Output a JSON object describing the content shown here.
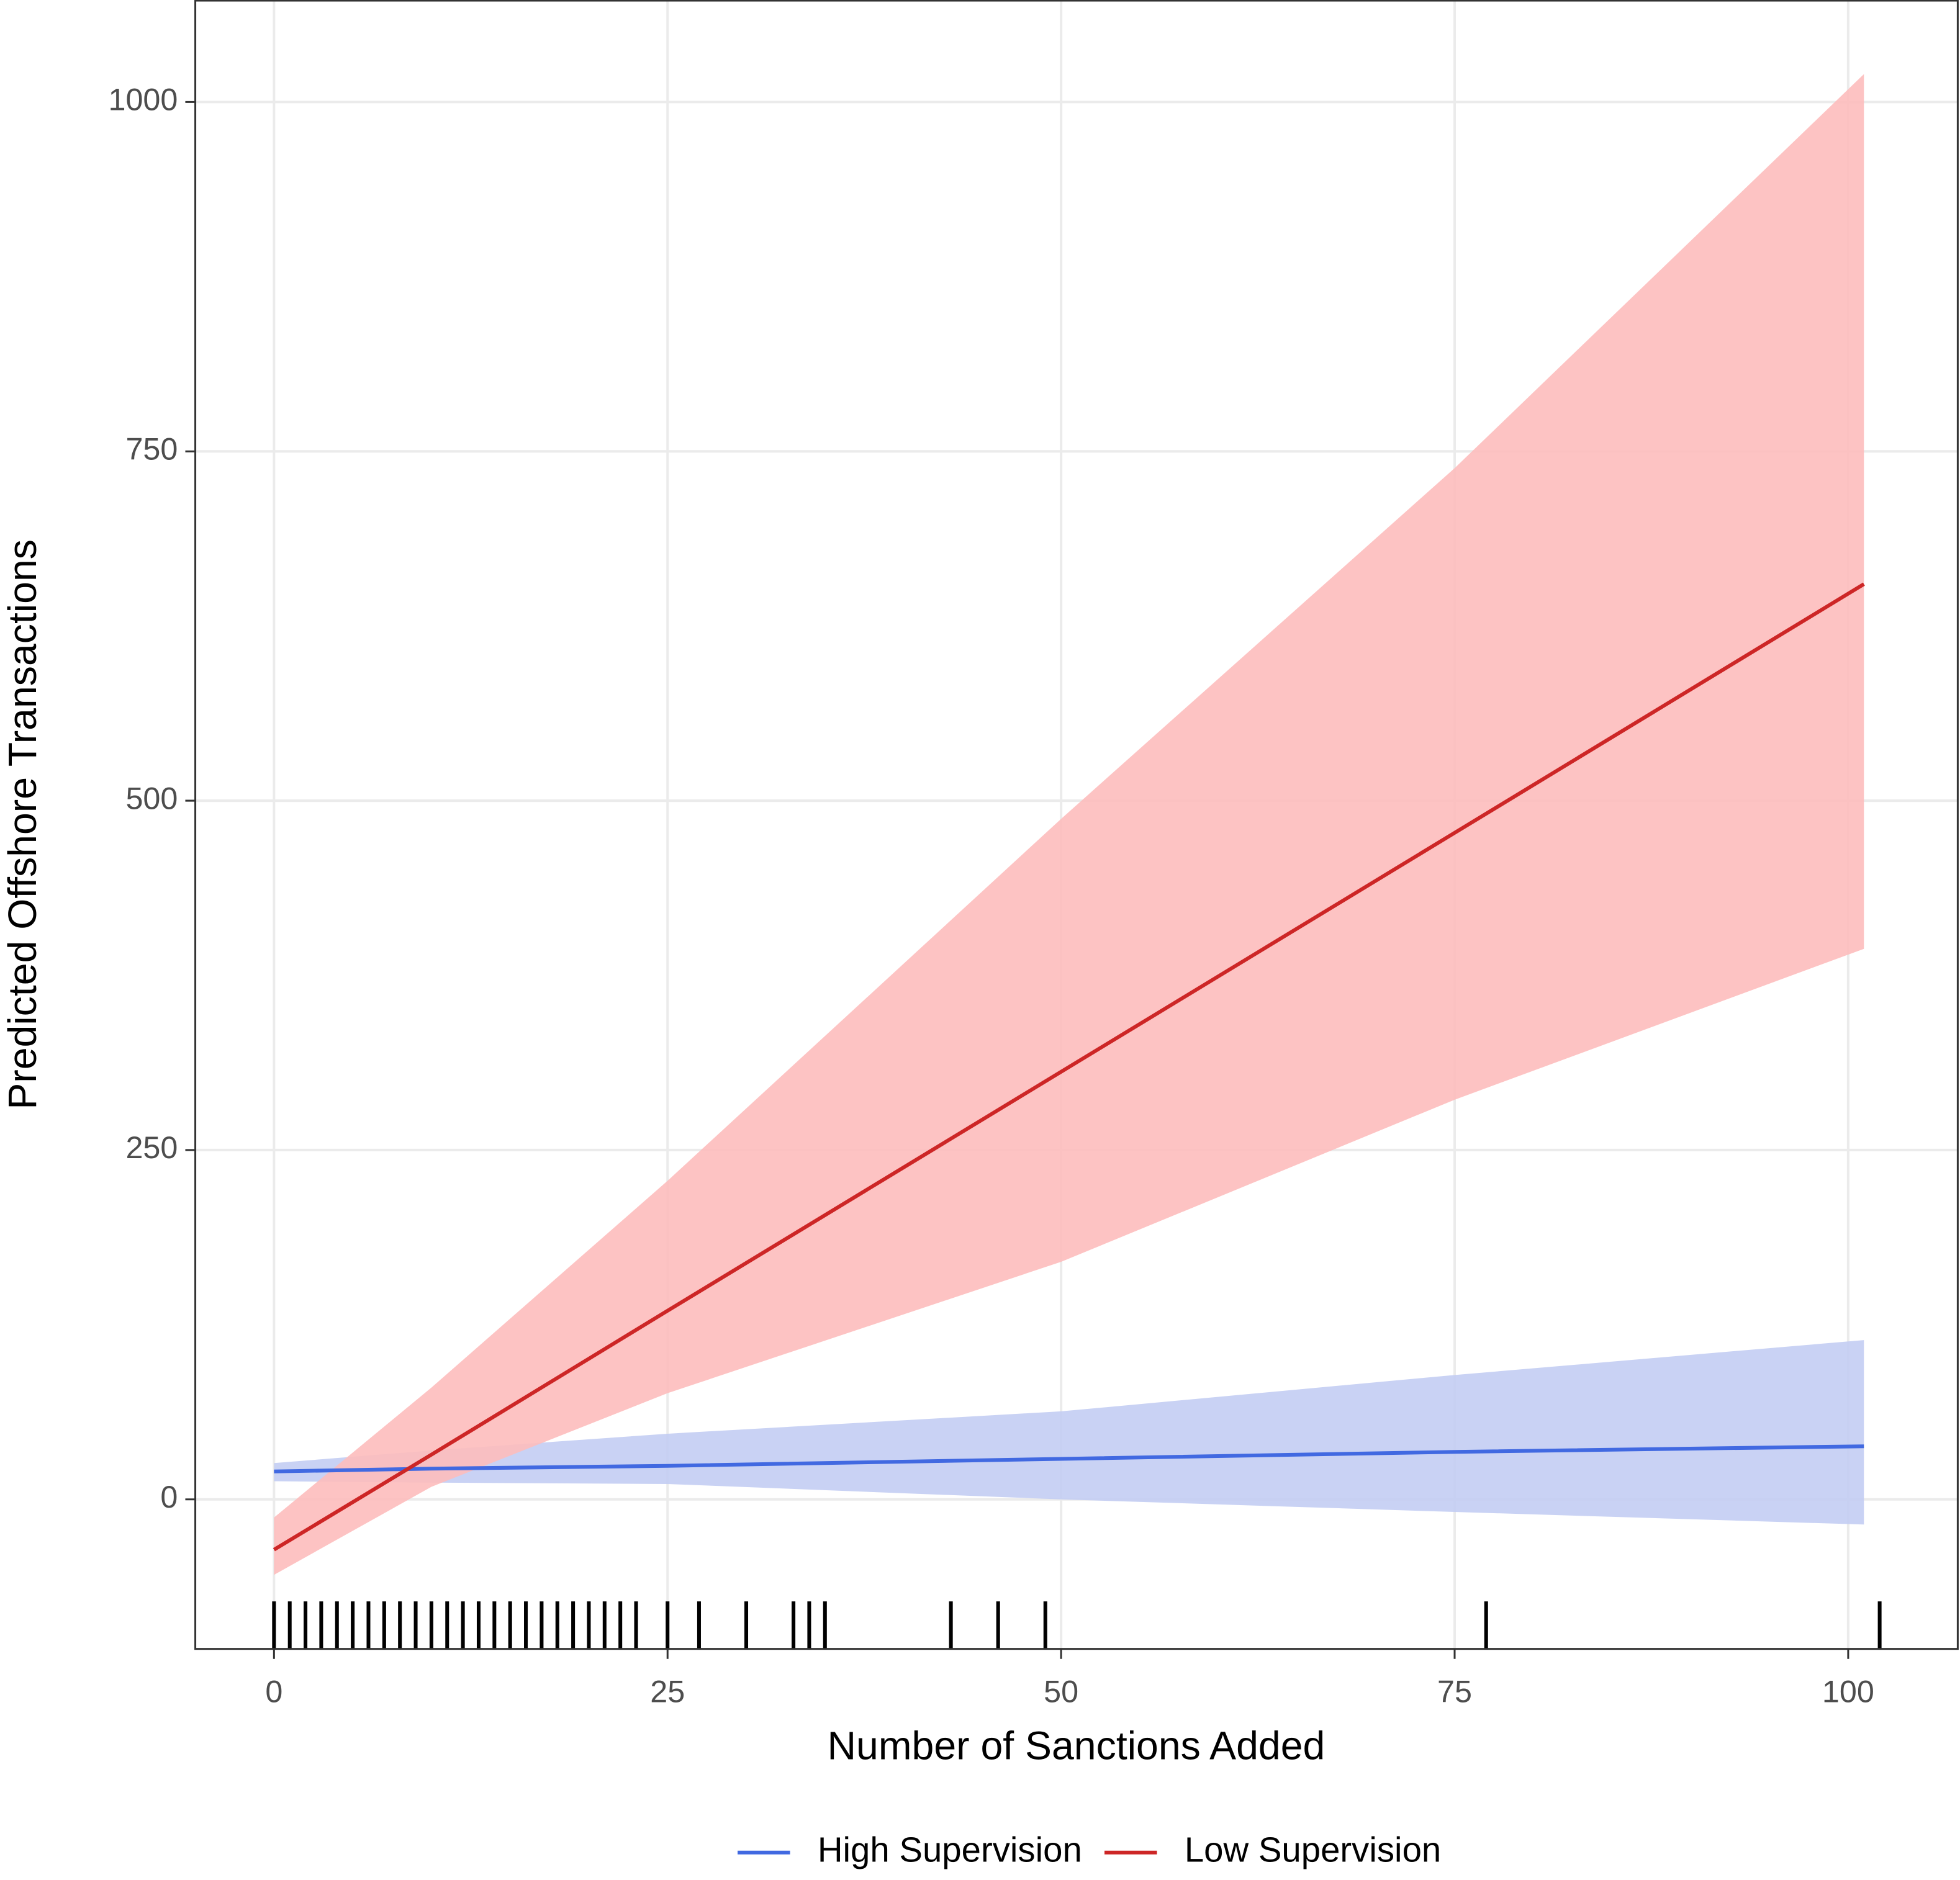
{
  "chart_data": {
    "type": "line",
    "x_label": "Number of Sanctions Added",
    "y_label": "Predicted Offshore Transactions",
    "x": [
      0,
      10,
      25,
      50,
      75,
      101
    ],
    "series": [
      {
        "name": "High Supervision",
        "color": "#4169e1",
        "band_color": "#c3cdf3",
        "values": [
          20,
          22,
          24,
          29,
          34,
          38
        ],
        "upper": [
          26,
          35,
          47,
          63,
          89,
          114
        ],
        "lower": [
          13,
          12,
          11,
          0,
          -9,
          -18
        ]
      },
      {
        "name": "Low Supervision",
        "color": "#cd2626",
        "band_color": "#fdbdbd",
        "values": [
          -36,
          32,
          135,
          306,
          477,
          655
        ],
        "upper": [
          -13,
          80,
          228,
          487,
          738,
          1020
        ],
        "lower": [
          -54,
          9,
          76,
          170,
          286,
          394
        ]
      }
    ],
    "rug": [
      0,
      1,
      2,
      3,
      4,
      5,
      6,
      7,
      8,
      9,
      10,
      11,
      12,
      13,
      14,
      15,
      16,
      17,
      18,
      19,
      20,
      21,
      22,
      23,
      25,
      27,
      30,
      33,
      34,
      35,
      43,
      46,
      49,
      77,
      102
    ],
    "xlim": [
      -5,
      107
    ],
    "ylim": [
      -107,
      1073
    ],
    "xticks": [
      0,
      25,
      50,
      75,
      100
    ],
    "yticks": [
      0,
      250,
      500,
      750,
      1000
    ],
    "grid": true,
    "legend": "bottom"
  }
}
